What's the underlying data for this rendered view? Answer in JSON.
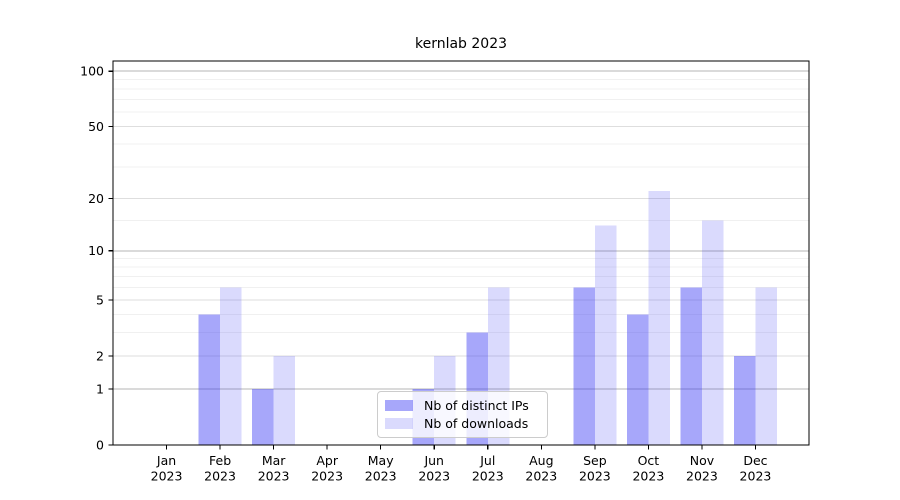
{
  "figure": {
    "background": "#ffffff"
  },
  "chart_data": {
    "type": "bar",
    "title": "kernlab 2023",
    "categories": [
      "Jan 2023",
      "Feb 2023",
      "Mar 2023",
      "Apr 2023",
      "May 2023",
      "Jun 2023",
      "Jul 2023",
      "Aug 2023",
      "Sep 2023",
      "Oct 2023",
      "Nov 2023",
      "Dec 2023"
    ],
    "series": [
      {
        "name": "Nb of distinct IPs",
        "color": "rgba(60,60,245,0.45)",
        "values": [
          0,
          4,
          1,
          0,
          0,
          1,
          3,
          0,
          6,
          4,
          6,
          2
        ]
      },
      {
        "name": "Nb of downloads",
        "color": "rgba(60,60,245,0.19)",
        "values": [
          0,
          6,
          2,
          0,
          0,
          2,
          6,
          0,
          14,
          22,
          15,
          6
        ]
      }
    ],
    "yscale": "log1p",
    "ylim": [
      0,
      100
    ],
    "y_ticks": [
      0,
      1,
      2,
      5,
      10,
      20,
      50,
      100
    ],
    "y_gridlines_major": [
      1,
      10,
      100
    ],
    "y_gridlines_mid": [
      2,
      5,
      20,
      50
    ],
    "y_gridlines_minor": [
      3,
      4,
      6,
      7,
      8,
      9,
      15,
      30,
      40,
      60,
      70,
      80,
      90
    ],
    "grid": true,
    "legend_position": "lower center",
    "axis_color": "#000000"
  }
}
